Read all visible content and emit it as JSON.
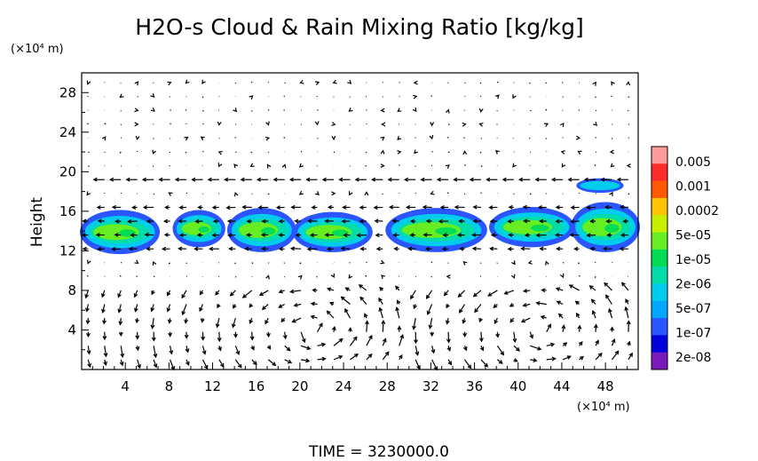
{
  "chart_data": {
    "type": "heatmap",
    "title": "H2O-s Cloud & Rain Mixing Ratio [kg/kg]",
    "ylabel": "Height",
    "y_unit": "(×10⁴ m)",
    "x_unit": "(×10⁴ m)",
    "time_label": "TIME  =  3230000.0",
    "xlim": [
      0,
      51
    ],
    "ylim": [
      0,
      30
    ],
    "x_ticks": [
      "4",
      "8",
      "12",
      "16",
      "20",
      "24",
      "28",
      "32",
      "36",
      "40",
      "44",
      "48"
    ],
    "y_ticks": [
      "4",
      "8",
      "12",
      "16",
      "20",
      "24",
      "28"
    ],
    "colorbar": {
      "labels": [
        "0.005",
        "0.001",
        "0.0002",
        "5e-05",
        "1e-05",
        "2e-06",
        "5e-07",
        "1e-07",
        "2e-08"
      ],
      "colors": [
        "#ff9a9a",
        "#ff2a2a",
        "#ff5a00",
        "#ffc400",
        "#c8ee00",
        "#66ee22",
        "#00dd55",
        "#00dcaa",
        "#00ccee",
        "#00a8ff",
        "#2a55ff",
        "#0000dd",
        "#7a1ab8"
      ]
    },
    "cloud_regions": [
      {
        "x0": 0.0,
        "x1": 7.0,
        "y0": 11.8,
        "y1": 16.0,
        "level": "1e-05"
      },
      {
        "x0": 8.5,
        "x1": 13.0,
        "y0": 12.5,
        "y1": 16.0,
        "level": "1e-05"
      },
      {
        "x0": 13.5,
        "x1": 19.5,
        "y0": 12.0,
        "y1": 16.2,
        "level": "1e-05"
      },
      {
        "x0": 19.5,
        "x1": 26.5,
        "y0": 12.0,
        "y1": 15.8,
        "level": "1e-05"
      },
      {
        "x0": 28.0,
        "x1": 37.0,
        "y0": 12.0,
        "y1": 16.2,
        "level": "1e-05"
      },
      {
        "x0": 37.5,
        "x1": 45.0,
        "y0": 12.5,
        "y1": 16.3,
        "level": "1e-05"
      },
      {
        "x0": 45.0,
        "x1": 51.0,
        "y0": 12.0,
        "y1": 16.8,
        "level": "1e-05"
      },
      {
        "x0": 45.5,
        "x1": 49.5,
        "y0": 18.0,
        "y1": 19.2,
        "level": "1e-07"
      }
    ]
  }
}
